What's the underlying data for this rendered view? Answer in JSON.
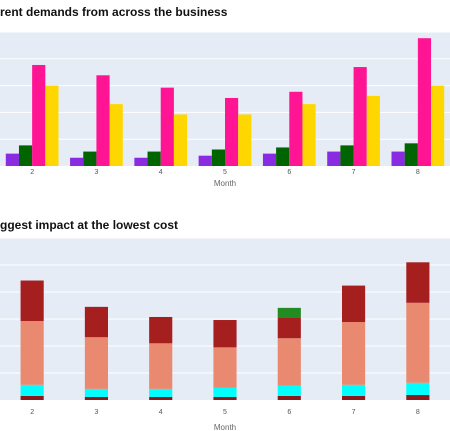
{
  "chart_data": [
    {
      "type": "bar",
      "title": "rent demands from across the business",
      "xlabel": "Month",
      "ylabel": "",
      "categories": [
        "2",
        "3",
        "4",
        "5",
        "6",
        "7",
        "8"
      ],
      "ylim": [
        0,
        65
      ],
      "grid": true,
      "series": [
        {
          "color": "#8a2be2",
          "values": [
            6,
            4,
            4,
            5,
            6,
            7,
            7
          ]
        },
        {
          "color": "#006400",
          "values": [
            10,
            7,
            7,
            8,
            9,
            10,
            11
          ]
        },
        {
          "color": "#ff1493",
          "values": [
            49,
            44,
            38,
            33,
            36,
            48,
            62
          ]
        },
        {
          "color": "#ffd700",
          "values": [
            39,
            30,
            25,
            25,
            30,
            34,
            39
          ]
        }
      ]
    },
    {
      "type": "bar",
      "stacked": true,
      "title": "ggest impact at the lowest cost",
      "xlabel": "Month",
      "ylabel": "",
      "categories": [
        "2",
        "3",
        "4",
        "5",
        "6",
        "7",
        "8"
      ],
      "ylim": [
        0,
        160
      ],
      "grid": true,
      "series": [
        {
          "color": "#8b1a1a",
          "values": [
            4,
            3,
            3,
            3,
            4,
            4,
            5
          ]
        },
        {
          "color": "#00ffff",
          "values": [
            11,
            8,
            8,
            9,
            10,
            11,
            12
          ]
        },
        {
          "color": "#e9896f",
          "values": [
            63,
            51,
            45,
            40,
            47,
            62,
            79
          ]
        },
        {
          "color": "#a61f1f",
          "values": [
            40,
            30,
            26,
            27,
            20,
            36,
            40
          ]
        },
        {
          "color": "#228b22",
          "values": [
            0,
            0,
            0,
            0,
            10,
            0,
            0
          ]
        }
      ]
    }
  ]
}
